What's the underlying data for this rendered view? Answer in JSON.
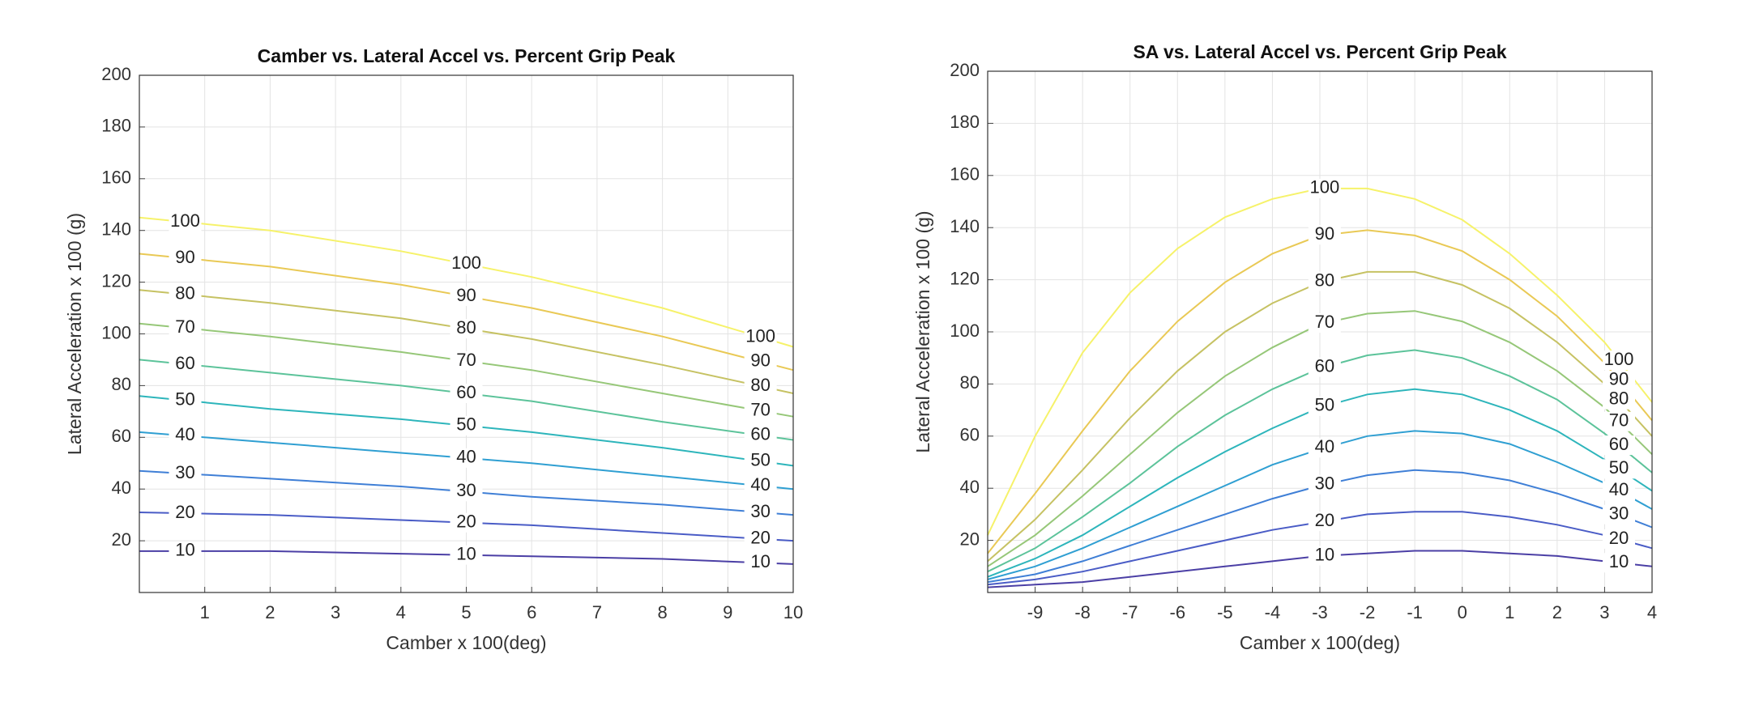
{
  "chart_data": [
    {
      "type": "contour",
      "title": "Camber vs. Lateral Accel vs. Percent Grip Peak",
      "xlabel": "Camber x 100(deg)",
      "ylabel": "Lateral Acceleration x 100 (g)",
      "xlim": [
        0,
        10
      ],
      "ylim": [
        0,
        200
      ],
      "xticks": [
        1,
        2,
        3,
        4,
        5,
        6,
        7,
        8,
        9,
        10
      ],
      "yticks": [
        20,
        40,
        60,
        80,
        100,
        120,
        140,
        160,
        180,
        200
      ],
      "grid": true,
      "x": [
        0,
        2,
        4,
        6,
        8,
        10
      ],
      "series": [
        {
          "name": "10",
          "color": "#4b3fa5",
          "values": [
            16,
            16,
            15,
            14,
            13,
            11
          ]
        },
        {
          "name": "20",
          "color": "#4a5cc6",
          "values": [
            31,
            30,
            28,
            26,
            23,
            20
          ]
        },
        {
          "name": "30",
          "color": "#3f7fd6",
          "values": [
            47,
            44,
            41,
            37,
            34,
            30
          ]
        },
        {
          "name": "40",
          "color": "#2f9fd2",
          "values": [
            62,
            58,
            54,
            50,
            45,
            40
          ]
        },
        {
          "name": "50",
          "color": "#2db5bb",
          "values": [
            76,
            71,
            67,
            62,
            56,
            49
          ]
        },
        {
          "name": "60",
          "color": "#5cc39a",
          "values": [
            90,
            85,
            80,
            74,
            66,
            59
          ]
        },
        {
          "name": "70",
          "color": "#96c778",
          "values": [
            104,
            99,
            93,
            86,
            77,
            68
          ]
        },
        {
          "name": "80",
          "color": "#c6c263",
          "values": [
            117,
            112,
            106,
            98,
            88,
            77
          ]
        },
        {
          "name": "90",
          "color": "#e9c955",
          "values": [
            131,
            126,
            119,
            110,
            99,
            86
          ]
        },
        {
          "name": "100",
          "color": "#f6f26a",
          "values": [
            145,
            140,
            132,
            122,
            110,
            95
          ]
        }
      ]
    },
    {
      "type": "contour",
      "title": "SA vs. Lateral Accel vs. Percent Grip Peak",
      "xlabel": "Camber x 100(deg)",
      "ylabel": "Lateral Acceleration x 100 (g)",
      "xlim": [
        -10,
        4
      ],
      "ylim": [
        0,
        200
      ],
      "xticks": [
        -9,
        -8,
        -7,
        -6,
        -5,
        -4,
        -3,
        -2,
        -1,
        0,
        1,
        2,
        3,
        4
      ],
      "yticks": [
        20,
        40,
        60,
        80,
        100,
        120,
        140,
        160,
        180,
        200
      ],
      "grid": true,
      "x": [
        -10,
        -9,
        -8,
        -7,
        -6,
        -5,
        -4,
        -3,
        -2,
        -1,
        0,
        1,
        2,
        3,
        4
      ],
      "series": [
        {
          "name": "10",
          "color": "#4b3fa5",
          "values": [
            2,
            3,
            4,
            6,
            8,
            10,
            12,
            14,
            15,
            16,
            16,
            15,
            14,
            12,
            10
          ]
        },
        {
          "name": "20",
          "color": "#4a5cc6",
          "values": [
            3,
            5,
            8,
            12,
            16,
            20,
            24,
            27,
            30,
            31,
            31,
            29,
            26,
            22,
            17
          ]
        },
        {
          "name": "30",
          "color": "#3f7fd6",
          "values": [
            4,
            7,
            12,
            18,
            24,
            30,
            36,
            41,
            45,
            47,
            46,
            43,
            38,
            32,
            25
          ]
        },
        {
          "name": "40",
          "color": "#2f9fd2",
          "values": [
            5,
            10,
            17,
            25,
            33,
            41,
            49,
            55,
            60,
            62,
            61,
            57,
            50,
            42,
            32
          ]
        },
        {
          "name": "50",
          "color": "#2db5bb",
          "values": [
            6,
            13,
            22,
            33,
            44,
            54,
            63,
            71,
            76,
            78,
            76,
            70,
            62,
            51,
            39
          ]
        },
        {
          "name": "60",
          "color": "#5cc39a",
          "values": [
            8,
            17,
            29,
            42,
            56,
            68,
            78,
            86,
            91,
            93,
            90,
            83,
            74,
            61,
            46
          ]
        },
        {
          "name": "70",
          "color": "#96c778",
          "values": [
            10,
            22,
            37,
            53,
            69,
            83,
            94,
            103,
            107,
            108,
            104,
            96,
            85,
            71,
            53
          ]
        },
        {
          "name": "80",
          "color": "#c6c263",
          "values": [
            12,
            28,
            47,
            67,
            85,
            100,
            111,
            119,
            123,
            123,
            118,
            109,
            96,
            80,
            60
          ]
        },
        {
          "name": "90",
          "color": "#e9c955",
          "values": [
            15,
            38,
            62,
            85,
            104,
            119,
            130,
            137,
            139,
            137,
            131,
            120,
            106,
            88,
            66
          ]
        },
        {
          "name": "100",
          "color": "#f6f26a",
          "values": [
            22,
            60,
            92,
            115,
            132,
            144,
            151,
            155,
            155,
            151,
            143,
            130,
            114,
            96,
            73
          ]
        }
      ]
    }
  ]
}
